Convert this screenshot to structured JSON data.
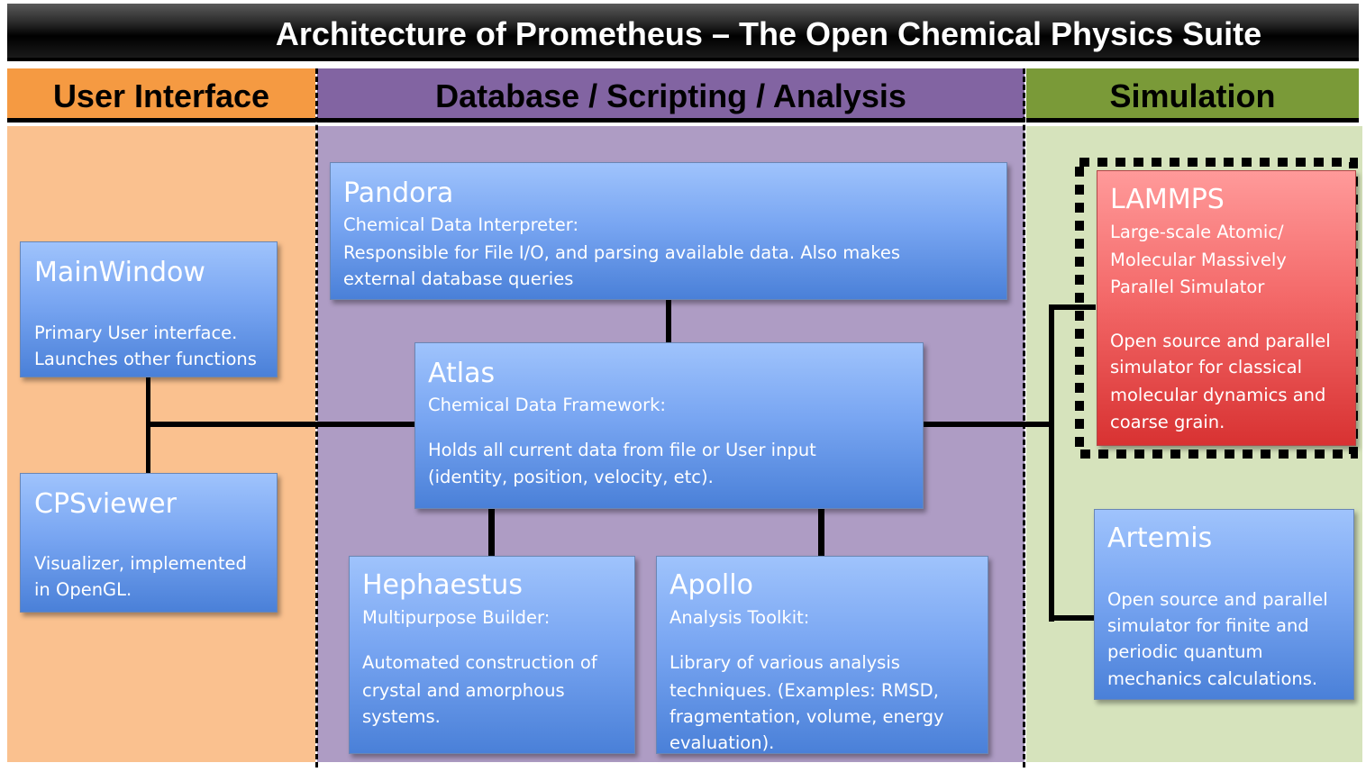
{
  "title": "Architecture of Prometheus – The Open Chemical Physics Suite",
  "columns": {
    "ui": "User Interface",
    "db": "Database / Scripting / Analysis",
    "sim": "Simulation"
  },
  "colors": {
    "ui_header": "#f59a42",
    "ui_body": "#fac18f",
    "db_header": "#8264a2",
    "db_body": "#ae9cc4",
    "sim_header": "#7a9a38",
    "sim_body": "#d6e3bc",
    "box_blue": "#79a6f2",
    "box_red": "#f46a6a"
  },
  "boxes": {
    "mainwindow": {
      "name": "MainWindow",
      "lines": [
        "Primary User interface.",
        "Launches other functions"
      ]
    },
    "cpsviewer": {
      "name": "CPSviewer",
      "lines": [
        "Visualizer, implemented",
        "in OpenGL."
      ]
    },
    "pandora": {
      "name": "Pandora",
      "subtitle": "Chemical Data Interpreter:",
      "lines": [
        "Responsible for File I/O, and parsing available data.  Also makes",
        "external database queries"
      ]
    },
    "atlas": {
      "name": "Atlas",
      "subtitle": "Chemical Data Framework:",
      "lines": [
        "Holds all current data from file or User input",
        "(identity, position, velocity, etc)."
      ]
    },
    "hephaestus": {
      "name": "Hephaestus",
      "subtitle": "Multipurpose Builder:",
      "lines": [
        "Automated construction of",
        "crystal and amorphous",
        "systems."
      ]
    },
    "apollo": {
      "name": "Apollo",
      "subtitle": "Analysis Toolkit:",
      "lines": [
        "Library of various analysis",
        "techniques. (Examples: RMSD,",
        "fragmentation, volume, energy",
        "evaluation)."
      ]
    },
    "lammps": {
      "name": "LAMMPS",
      "subtitle_lines": [
        "Large-scale Atomic/",
        "Molecular Massively",
        "Parallel Simulator"
      ],
      "lines": [
        "Open source and parallel",
        "simulator for classical",
        "molecular dynamics and",
        "coarse grain."
      ]
    },
    "artemis": {
      "name": "Artemis",
      "lines": [
        "Open source and parallel",
        "simulator for finite and",
        "periodic quantum",
        "mechanics calculations."
      ]
    }
  }
}
